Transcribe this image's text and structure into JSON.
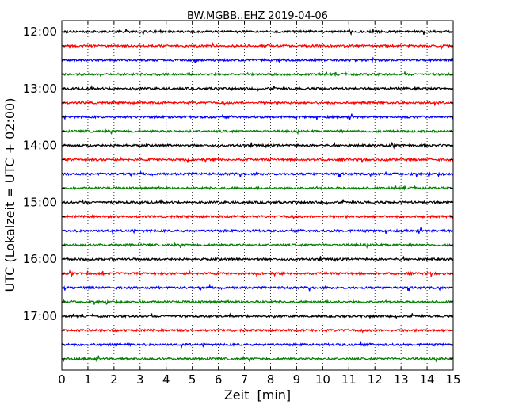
{
  "chart_data": {
    "type": "line",
    "title": "BW.MGBB..EHZ 2019-04-06",
    "xlabel": "Zeit  [min]",
    "ylabel": "UTC (Lokalzeit = UTC + 02:00)",
    "xlim": [
      0,
      15
    ],
    "x_ticks": [
      "0",
      "1",
      "2",
      "3",
      "4",
      "5",
      "6",
      "7",
      "8",
      "9",
      "10",
      "11",
      "12",
      "13",
      "14",
      "15"
    ],
    "y_tick_labels": [
      "12:00",
      "13:00",
      "14:00",
      "15:00",
      "16:00",
      "17:00"
    ],
    "grid": "vertical dotted",
    "series": [
      {
        "start": "12:00",
        "color": "#000000"
      },
      {
        "start": "12:15",
        "color": "#ff0000"
      },
      {
        "start": "12:30",
        "color": "#0000ff"
      },
      {
        "start": "12:45",
        "color": "#008000"
      },
      {
        "start": "13:00",
        "color": "#000000"
      },
      {
        "start": "13:15",
        "color": "#ff0000"
      },
      {
        "start": "13:30",
        "color": "#0000ff"
      },
      {
        "start": "13:45",
        "color": "#008000"
      },
      {
        "start": "14:00",
        "color": "#000000"
      },
      {
        "start": "14:15",
        "color": "#ff0000"
      },
      {
        "start": "14:30",
        "color": "#0000ff"
      },
      {
        "start": "14:45",
        "color": "#008000"
      },
      {
        "start": "15:00",
        "color": "#000000"
      },
      {
        "start": "15:15",
        "color": "#ff0000"
      },
      {
        "start": "15:30",
        "color": "#0000ff"
      },
      {
        "start": "15:45",
        "color": "#008000"
      },
      {
        "start": "16:00",
        "color": "#000000"
      },
      {
        "start": "16:15",
        "color": "#ff0000"
      },
      {
        "start": "16:30",
        "color": "#0000ff"
      },
      {
        "start": "16:45",
        "color": "#008000"
      },
      {
        "start": "17:00",
        "color": "#000000"
      },
      {
        "start": "17:15",
        "color": "#ff0000"
      },
      {
        "start": "17:30",
        "color": "#0000ff"
      },
      {
        "start": "17:45",
        "color": "#008000"
      }
    ]
  }
}
